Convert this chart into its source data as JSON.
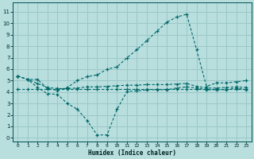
{
  "xlabel": "Humidex (Indice chaleur)",
  "bg_color": "#b8dede",
  "grid_color": "#9cc8c8",
  "line_color": "#006868",
  "xlim": [
    -0.5,
    23.5
  ],
  "ylim": [
    -0.3,
    11.8
  ],
  "xticks": [
    0,
    1,
    2,
    3,
    4,
    5,
    6,
    7,
    8,
    9,
    10,
    11,
    12,
    13,
    14,
    15,
    16,
    17,
    18,
    19,
    20,
    21,
    22,
    23
  ],
  "yticks": [
    0,
    1,
    2,
    3,
    4,
    5,
    6,
    7,
    8,
    9,
    10,
    11
  ],
  "series": {
    "main_up": {
      "x": [
        0,
        1,
        2,
        3,
        4,
        5,
        6,
        7,
        8,
        9,
        10,
        11,
        12,
        13,
        14,
        15,
        16,
        17,
        18,
        19,
        20,
        21,
        22,
        23
      ],
      "y": [
        5.4,
        5.1,
        5.1,
        4.3,
        4.15,
        4.4,
        5.0,
        5.35,
        5.5,
        6.0,
        6.2,
        7.0,
        7.7,
        8.5,
        9.3,
        10.1,
        10.55,
        10.8,
        7.7,
        4.5,
        4.8,
        4.8,
        4.9,
        5.0
      ]
    },
    "min_line": {
      "x": [
        0,
        1,
        2,
        3,
        4,
        5,
        6,
        7,
        8,
        9,
        10,
        11,
        12,
        13,
        14,
        15,
        16,
        17,
        18,
        19,
        20,
        21,
        22,
        23
      ],
      "y": [
        5.4,
        5.1,
        4.4,
        3.85,
        3.8,
        3.0,
        2.5,
        1.5,
        0.25,
        0.25,
        2.5,
        4.05,
        4.1,
        4.2,
        4.2,
        4.2,
        4.35,
        4.45,
        4.35,
        4.2,
        4.2,
        4.2,
        4.35,
        4.2
      ]
    },
    "avg_line": {
      "x": [
        0,
        1,
        2,
        3,
        4,
        5,
        6,
        7,
        8,
        9,
        10,
        11,
        12,
        13,
        14,
        15,
        16,
        17,
        18,
        19,
        20,
        21,
        22,
        23
      ],
      "y": [
        5.4,
        5.1,
        4.75,
        4.4,
        4.3,
        4.3,
        4.35,
        4.45,
        4.45,
        4.5,
        4.55,
        4.6,
        4.6,
        4.65,
        4.65,
        4.65,
        4.7,
        4.75,
        4.5,
        4.35,
        4.35,
        4.4,
        4.45,
        4.4
      ]
    },
    "flat_line": {
      "x": [
        0,
        1,
        2,
        3,
        4,
        5,
        6,
        7,
        8,
        9,
        10,
        11,
        12,
        13,
        14,
        15,
        16,
        17,
        18,
        19,
        20,
        21,
        22,
        23
      ],
      "y": [
        4.25,
        4.25,
        4.25,
        4.25,
        4.25,
        4.25,
        4.25,
        4.25,
        4.25,
        4.25,
        4.25,
        4.25,
        4.25,
        4.25,
        4.25,
        4.25,
        4.25,
        4.25,
        4.25,
        4.25,
        4.25,
        4.25,
        4.25,
        4.25
      ]
    }
  }
}
